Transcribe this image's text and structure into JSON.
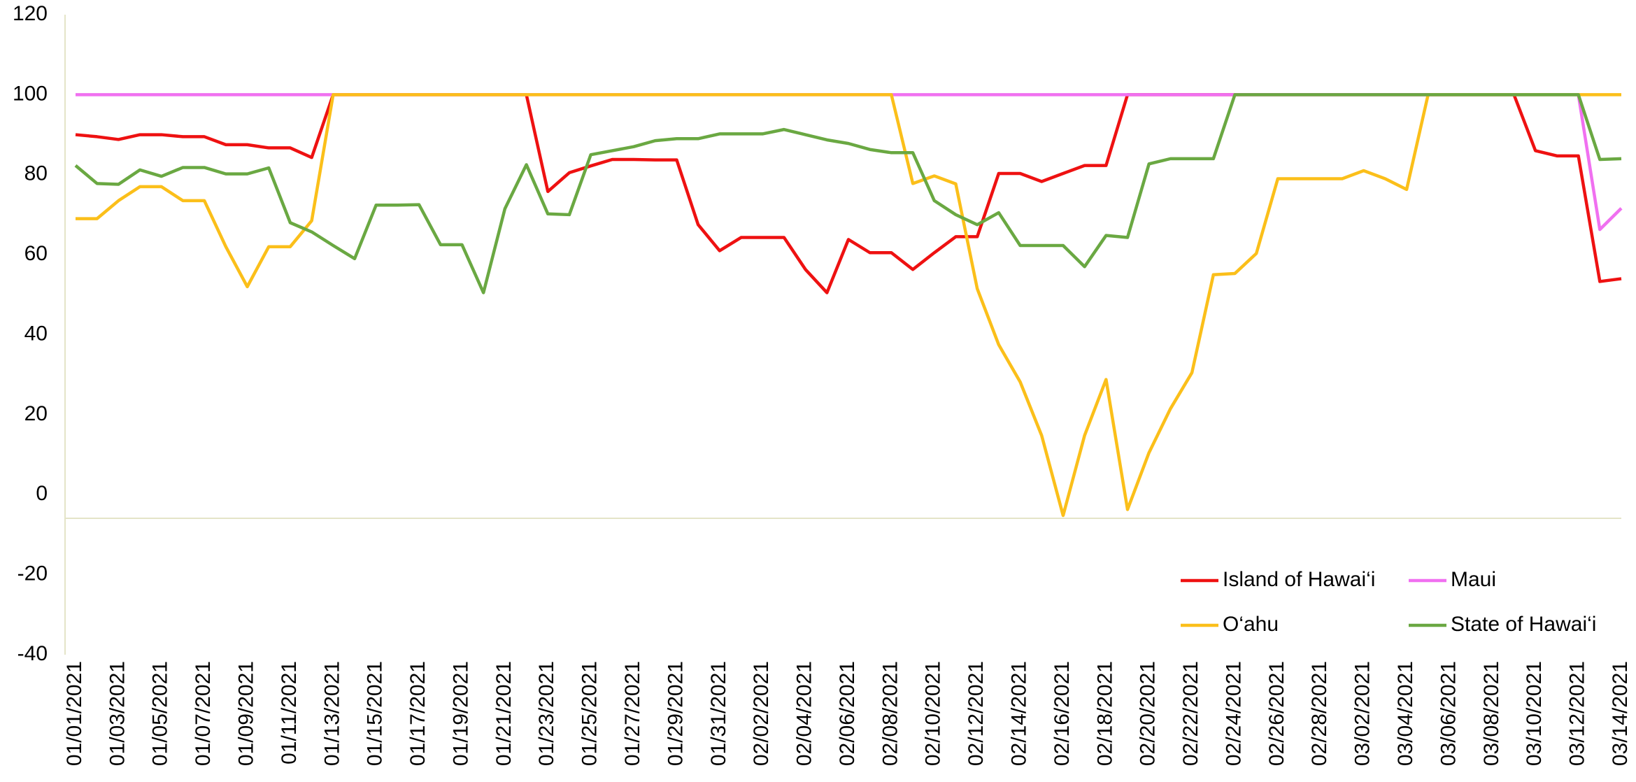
{
  "chart_data": {
    "type": "line",
    "categories": [
      "01/01/2021",
      null,
      "01/03/2021",
      null,
      "01/05/2021",
      null,
      "01/07/2021",
      null,
      "01/09/2021",
      null,
      "01/11/2021",
      null,
      "01/13/2021",
      null,
      "01/15/2021",
      null,
      "01/17/2021",
      null,
      "01/19/2021",
      null,
      "01/21/2021",
      null,
      "01/23/2021",
      null,
      "01/25/2021",
      null,
      "01/27/2021",
      null,
      "01/29/2021",
      null,
      "01/31/2021",
      null,
      "02/02/2021",
      null,
      "02/04/2021",
      null,
      "02/06/2021",
      null,
      "02/08/2021",
      null,
      "02/10/2021",
      null,
      "02/12/2021",
      null,
      "02/14/2021",
      null,
      "02/16/2021",
      null,
      "02/18/2021",
      null,
      "02/20/2021",
      null,
      "02/22/2021",
      null,
      "02/24/2021",
      null,
      "02/26/2021",
      null,
      "02/28/2021",
      null,
      "03/02/2021",
      null,
      "03/04/2021",
      null,
      "03/06/2021",
      null,
      "03/08/2021",
      null,
      "03/10/2021",
      null,
      "03/12/2021",
      null,
      "03/14/2021"
    ],
    "series": [
      {
        "name": "Island of Hawai‘i",
        "color": "#ee1111",
        "values": [
          90,
          89.5,
          88.8,
          90,
          90,
          89.5,
          89.5,
          87.5,
          87.5,
          86.7,
          86.7,
          84.3,
          100,
          100,
          100,
          100,
          100,
          100,
          100,
          100,
          100,
          100,
          75.8,
          80.5,
          82.2,
          83.8,
          83.8,
          83.7,
          83.7,
          67.5,
          61,
          64.3,
          64.3,
          64.3,
          56.3,
          50.5,
          63.8,
          60.5,
          60.5,
          56.3,
          60.5,
          64.5,
          64.5,
          80.3,
          80.3,
          78.3,
          80.3,
          82.3,
          82.3,
          100,
          100,
          100,
          100,
          100,
          100,
          100,
          100,
          100,
          100,
          100,
          100,
          100,
          100,
          100,
          100,
          100,
          100,
          100,
          86,
          84.7,
          84.7,
          53.3,
          54
        ]
      },
      {
        "name": "Maui",
        "color": "#f070f0",
        "values": [
          100,
          100,
          100,
          100,
          100,
          100,
          100,
          100,
          100,
          100,
          100,
          100,
          100,
          100,
          100,
          100,
          100,
          100,
          100,
          100,
          100,
          100,
          100,
          100,
          100,
          100,
          100,
          100,
          100,
          100,
          100,
          100,
          100,
          100,
          100,
          100,
          100,
          100,
          100,
          100,
          100,
          100,
          100,
          100,
          100,
          100,
          100,
          100,
          100,
          100,
          100,
          100,
          100,
          100,
          100,
          100,
          100,
          100,
          100,
          100,
          100,
          100,
          100,
          100,
          100,
          100,
          100,
          100,
          100,
          100,
          100,
          66.3,
          71.6
        ]
      },
      {
        "name": "O‘ahu",
        "color": "#fbbf1a",
        "values": [
          69,
          69,
          73.5,
          77,
          77,
          73.5,
          73.5,
          62,
          52,
          62,
          62,
          68.5,
          100,
          100,
          100,
          100,
          100,
          100,
          100,
          100,
          100,
          100,
          100,
          100,
          100,
          100,
          100,
          100,
          100,
          100,
          100,
          100,
          100,
          100,
          100,
          100,
          100,
          100,
          100,
          77.8,
          79.7,
          77.7,
          51.5,
          37.5,
          28.2,
          14.8,
          -5.2,
          14.8,
          28.8,
          -3.7,
          10.5,
          21.5,
          30.5,
          55,
          55.3,
          60.3,
          79,
          79,
          79,
          79,
          81,
          79,
          76.3,
          100,
          100,
          100,
          100,
          100,
          100,
          100,
          100,
          100,
          100
        ]
      },
      {
        "name": "State of Hawai‘i",
        "color": "#6aa842",
        "values": [
          82.3,
          77.8,
          77.6,
          81.2,
          79.6,
          81.8,
          81.8,
          80.2,
          80.2,
          81.7,
          68,
          65.7,
          62.3,
          59,
          72.4,
          72.4,
          72.5,
          62.5,
          62.5,
          50.5,
          71.5,
          82.5,
          70.2,
          70,
          85,
          86,
          87,
          88.5,
          89,
          89,
          90.2,
          90.2,
          90.2,
          91.3,
          90,
          88.7,
          87.8,
          86.3,
          85.5,
          85.5,
          73.5,
          70,
          67.5,
          70.5,
          62.3,
          62.3,
          62.3,
          57,
          64.8,
          64.3,
          82.7,
          84,
          84,
          84,
          100,
          100,
          100,
          100,
          100,
          100,
          100,
          100,
          100,
          100,
          100,
          100,
          100,
          100,
          100,
          100,
          100,
          83.8,
          84
        ]
      }
    ],
    "ylim": [
      -40,
      120
    ],
    "yticks": [
      -40,
      -20,
      0,
      20,
      40,
      60,
      80,
      100,
      120
    ],
    "grid": false,
    "legend": "lower right"
  }
}
